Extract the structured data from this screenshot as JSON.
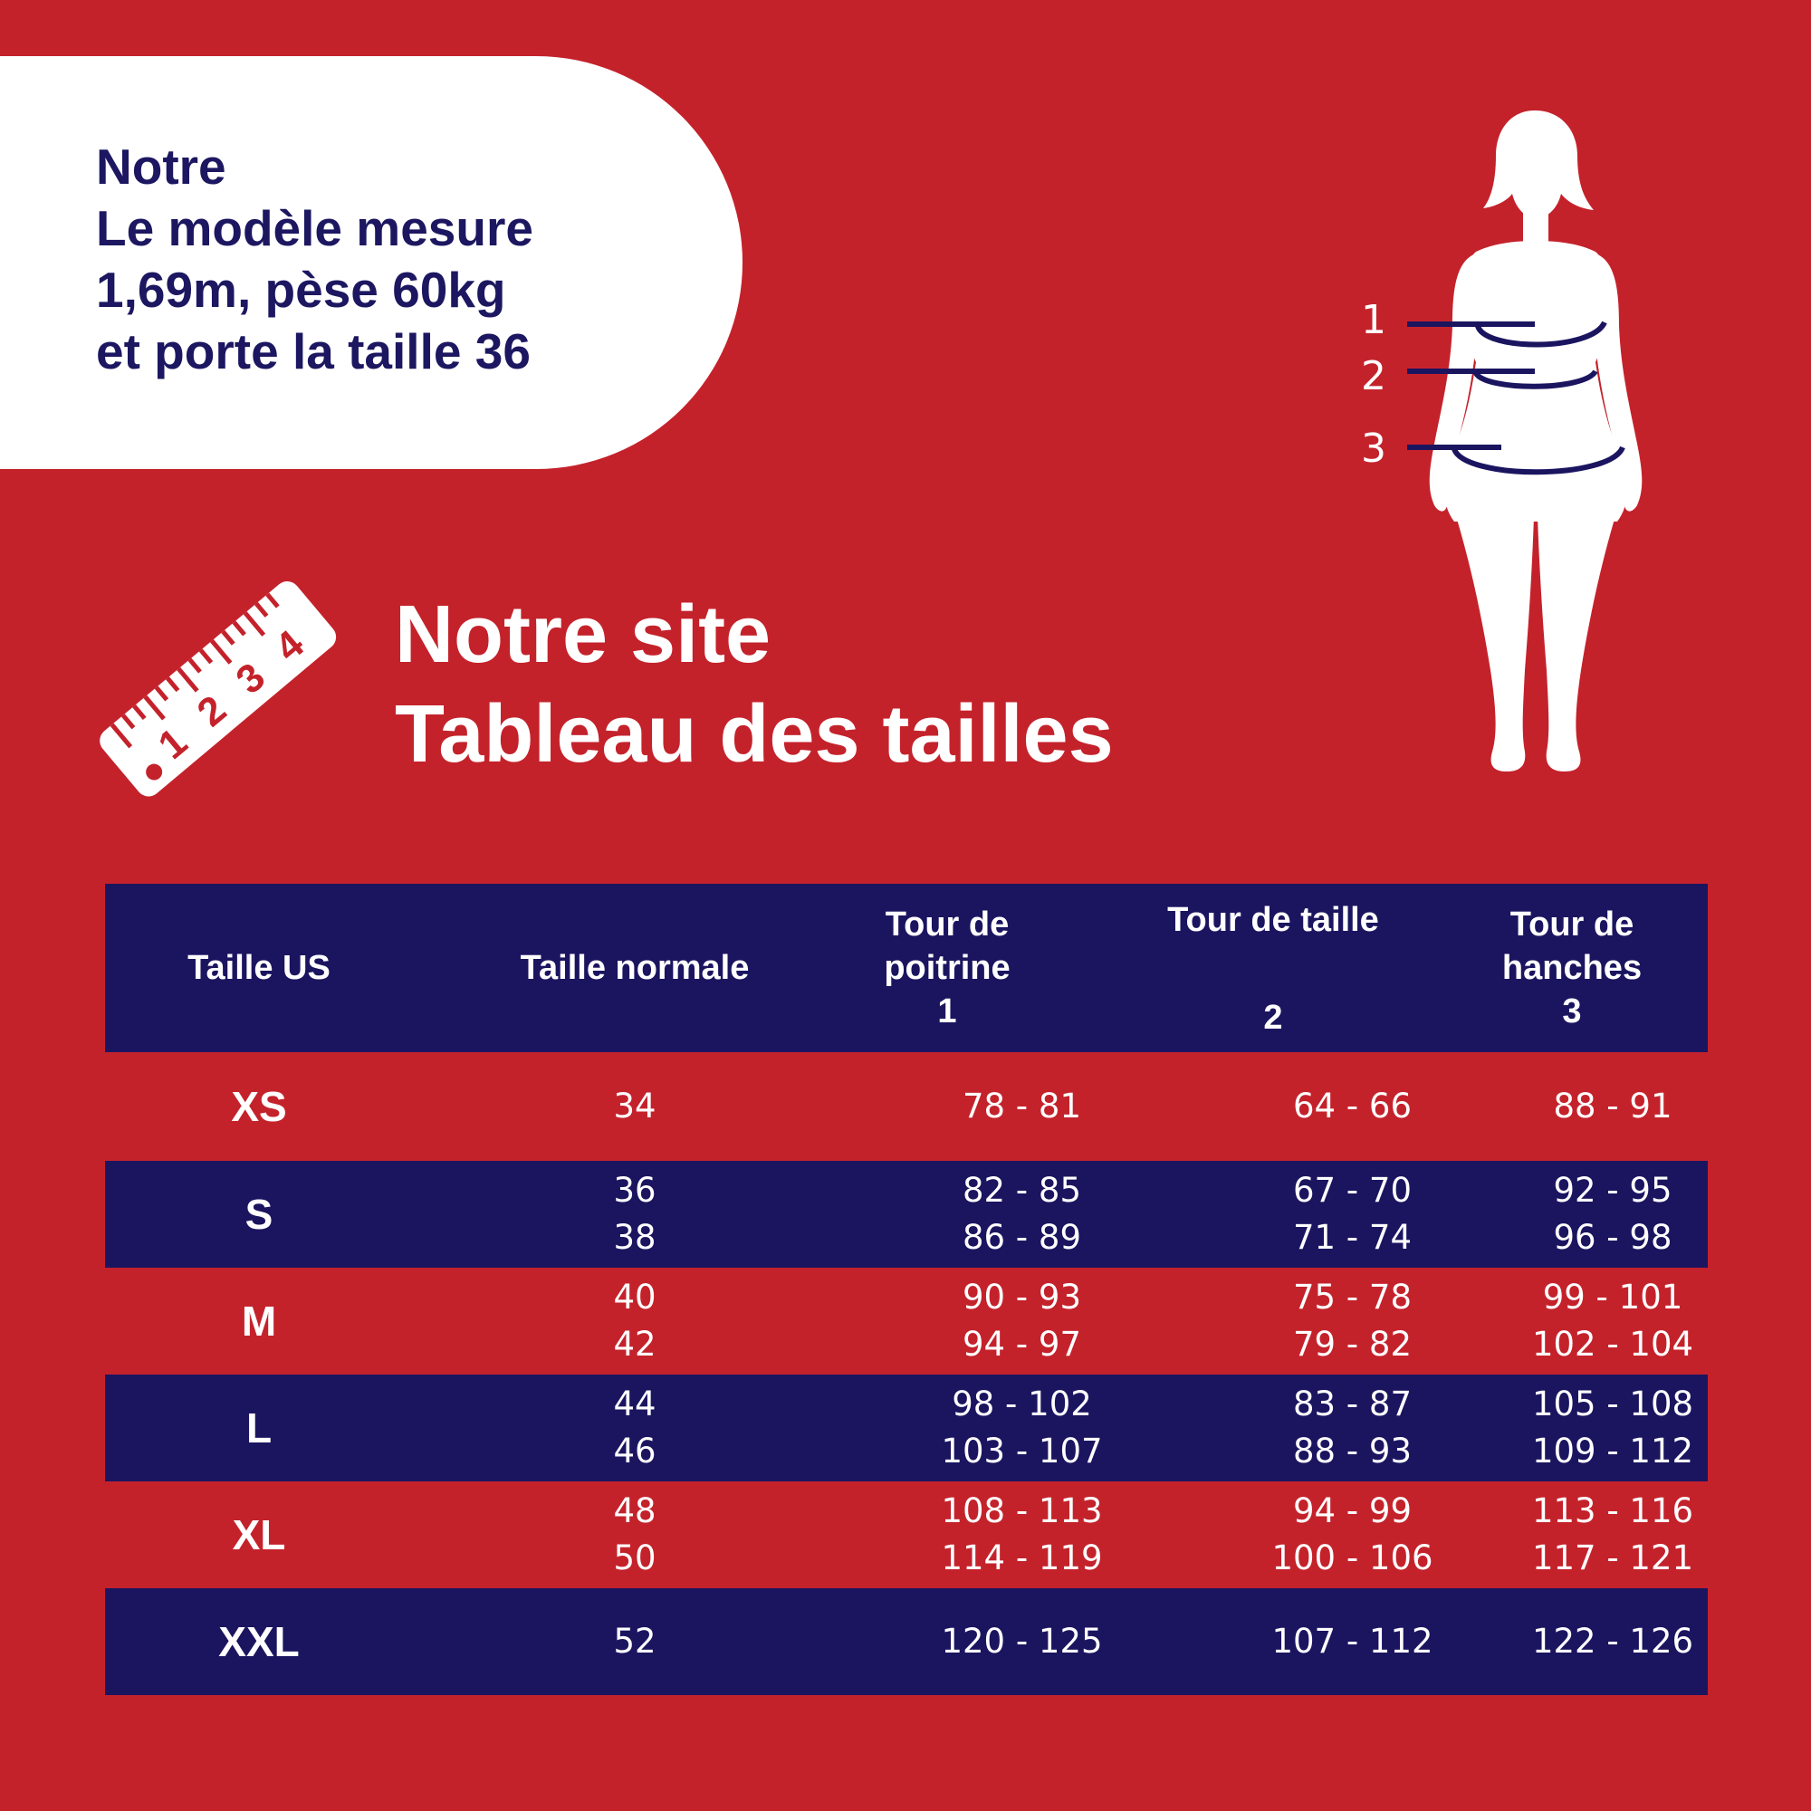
{
  "model_card": {
    "line1": "Notre",
    "line2": "Le modèle mesure",
    "line3": "1,69m, pèse 60kg",
    "line4": "et porte la taille 36"
  },
  "ruler": {
    "numbers": [
      "1",
      "2",
      "3",
      "4"
    ]
  },
  "title": {
    "line1": "Notre site",
    "line2": "Tableau des tailles"
  },
  "figure": {
    "markers": [
      "1",
      "2",
      "3"
    ]
  },
  "table": {
    "headers": [
      {
        "lines": [
          "Taille US"
        ],
        "num": ""
      },
      {
        "lines": [
          "Taille normale"
        ],
        "num": ""
      },
      {
        "lines": [
          "Tour de",
          "poitrine"
        ],
        "num": "1"
      },
      {
        "lines": [
          "Tour de taille"
        ],
        "num": "2"
      },
      {
        "lines": [
          "Tour de",
          "hanches"
        ],
        "num": "3"
      }
    ],
    "rows": [
      {
        "us": "XS",
        "normal": [
          "34"
        ],
        "poitrine": [
          "78 - 81"
        ],
        "taille": [
          "64 - 66"
        ],
        "hanches": [
          "88 - 91"
        ]
      },
      {
        "us": "S",
        "normal": [
          "36",
          "38"
        ],
        "poitrine": [
          "82 - 85",
          "86 - 89"
        ],
        "taille": [
          "67 - 70",
          "71 - 74"
        ],
        "hanches": [
          "92 - 95",
          "96 - 98"
        ]
      },
      {
        "us": "M",
        "normal": [
          "40",
          "42"
        ],
        "poitrine": [
          "90 - 93",
          "94 - 97"
        ],
        "taille": [
          "75 - 78",
          "79 - 82"
        ],
        "hanches": [
          "99 - 101",
          "102 - 104"
        ]
      },
      {
        "us": "L",
        "normal": [
          "44",
          "46"
        ],
        "poitrine": [
          "98 - 102",
          "103 - 107"
        ],
        "taille": [
          "83 - 87",
          "88 - 93"
        ],
        "hanches": [
          "105 - 108",
          "109 - 112"
        ]
      },
      {
        "us": "XL",
        "normal": [
          "48",
          "50"
        ],
        "poitrine": [
          "108 - 113",
          "114 - 119"
        ],
        "taille": [
          "94 - 99",
          "100 - 106"
        ],
        "hanches": [
          "113 - 116",
          "117 - 121"
        ]
      },
      {
        "us": "XXL",
        "normal": [
          "52"
        ],
        "poitrine": [
          "120 - 125"
        ],
        "taille": [
          "107 - 112"
        ],
        "hanches": [
          "122 - 126"
        ]
      }
    ]
  },
  "colors": {
    "background": "#c4222b",
    "navy": "#1b1560",
    "white": "#ffffff"
  }
}
